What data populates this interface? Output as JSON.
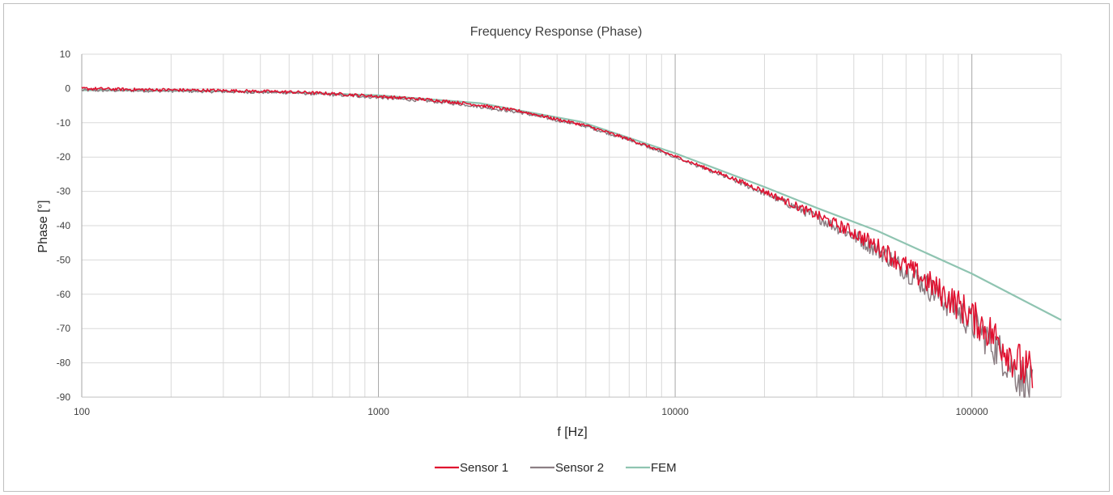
{
  "chart_data": {
    "type": "line",
    "title": "Frequency Response (Phase)",
    "xlabel": "f [Hz]",
    "ylabel": "Phase [°]",
    "xscale": "log",
    "xlim": [
      100,
      200000
    ],
    "ylim": [
      -90,
      10
    ],
    "x_tick_labels": [
      "100",
      "1000",
      "10000",
      "100000"
    ],
    "y_tick_labels": [
      "10",
      "0",
      "-10",
      "-20",
      "-30",
      "-40",
      "-50",
      "-60",
      "-70",
      "-80",
      "-90"
    ],
    "grid": true,
    "legend_position": "bottom",
    "series": [
      {
        "name": "Sensor 1",
        "color": "#e0102f",
        "x": [
          100,
          150,
          200,
          300,
          500,
          700,
          1000,
          1500,
          2000,
          3000,
          5000,
          7000,
          10000,
          15000,
          20000,
          30000,
          40000,
          50000,
          60000,
          70000,
          80000,
          90000,
          100000,
          110000,
          120000,
          130000,
          140000,
          150000,
          160000
        ],
        "y": [
          0,
          -0.3,
          -0.4,
          -0.6,
          -1,
          -1.5,
          -2.3,
          -3.3,
          -4.4,
          -6.6,
          -10.8,
          -14.8,
          -19.8,
          -25.6,
          -30,
          -37,
          -42,
          -47,
          -52,
          -56,
          -60,
          -63,
          -66.5,
          -69.5,
          -72.5,
          -75.5,
          -79,
          -82,
          -84
        ]
      },
      {
        "name": "Sensor 2",
        "color": "#8c7f84",
        "x": [
          100,
          150,
          200,
          300,
          500,
          700,
          1000,
          1500,
          2000,
          3000,
          5000,
          7000,
          10000,
          15000,
          20000,
          30000,
          40000,
          50000,
          60000,
          70000,
          80000,
          90000,
          100000,
          110000,
          120000,
          130000,
          140000,
          150000,
          160000
        ],
        "y": [
          -0.5,
          -0.6,
          -0.7,
          -0.9,
          -1.2,
          -1.8,
          -2.6,
          -3.7,
          -4.8,
          -7,
          -11,
          -15,
          -20,
          -26,
          -30.5,
          -37.5,
          -43,
          -48,
          -53,
          -57.5,
          -61.5,
          -65,
          -68.5,
          -72,
          -75.5,
          -79,
          -82.5,
          -85.5,
          -88.5
        ]
      },
      {
        "name": "FEM",
        "color": "#8fc4b1",
        "x": [
          100,
          300,
          500,
          1000,
          2200,
          4800,
          10000,
          20000,
          30000,
          48000,
          100000,
          200000
        ],
        "y": [
          -0.5,
          -0.8,
          -1.1,
          -2,
          -4.3,
          -9.7,
          -18.9,
          -28.7,
          -34.8,
          -41.5,
          -54,
          -67.5
        ]
      }
    ]
  }
}
